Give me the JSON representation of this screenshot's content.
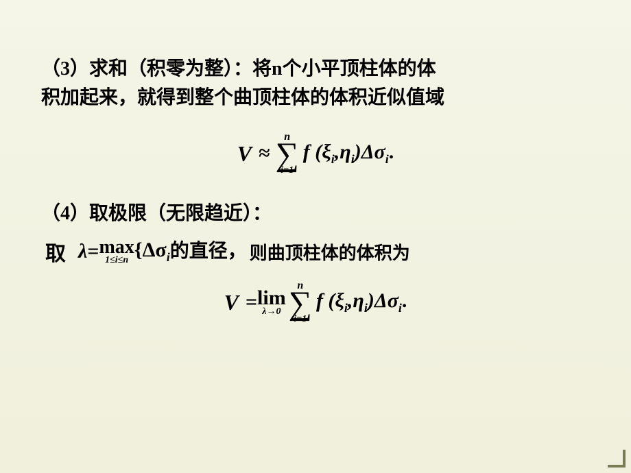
{
  "para1_line1": "（3）求和（积零为整）：将n个小平顶柱体的体",
  "para1_line2": "积加起来，就得到整个曲顶柱体的体积近似值域",
  "formula1": {
    "V": "V",
    "approx": "≈",
    "sum_top": "n",
    "sum_sym": "∑",
    "sum_bot": "i=1",
    "body": "f (ξ",
    "sub_i1": "i",
    "mid": ",η",
    "sub_i2": "i",
    "close": ")Δσ",
    "sub_i3": "i",
    "dot": "."
  },
  "para3": "（4）取极限（无限趋近）：",
  "line4": {
    "qu": "取",
    "lambda": "λ",
    "eq": " = ",
    "max": "max",
    "max_sub": "1≤i≤n",
    "brace": "{Δσ",
    "sub_i": "i",
    "diam": "的直径，",
    "rest": "则曲顶柱体的体积为"
  },
  "formula2": {
    "V": "V",
    "eq": " = ",
    "lim": "lim",
    "lim_sub": "λ→0",
    "sum_top": "n",
    "sum_sym": "∑",
    "sum_bot": "i=1",
    "body": "f (ξ",
    "sub_i1": "i",
    "mid": ",η",
    "sub_i2": "i",
    "close": ")Δσ",
    "sub_i3": "i",
    "dot": "."
  }
}
